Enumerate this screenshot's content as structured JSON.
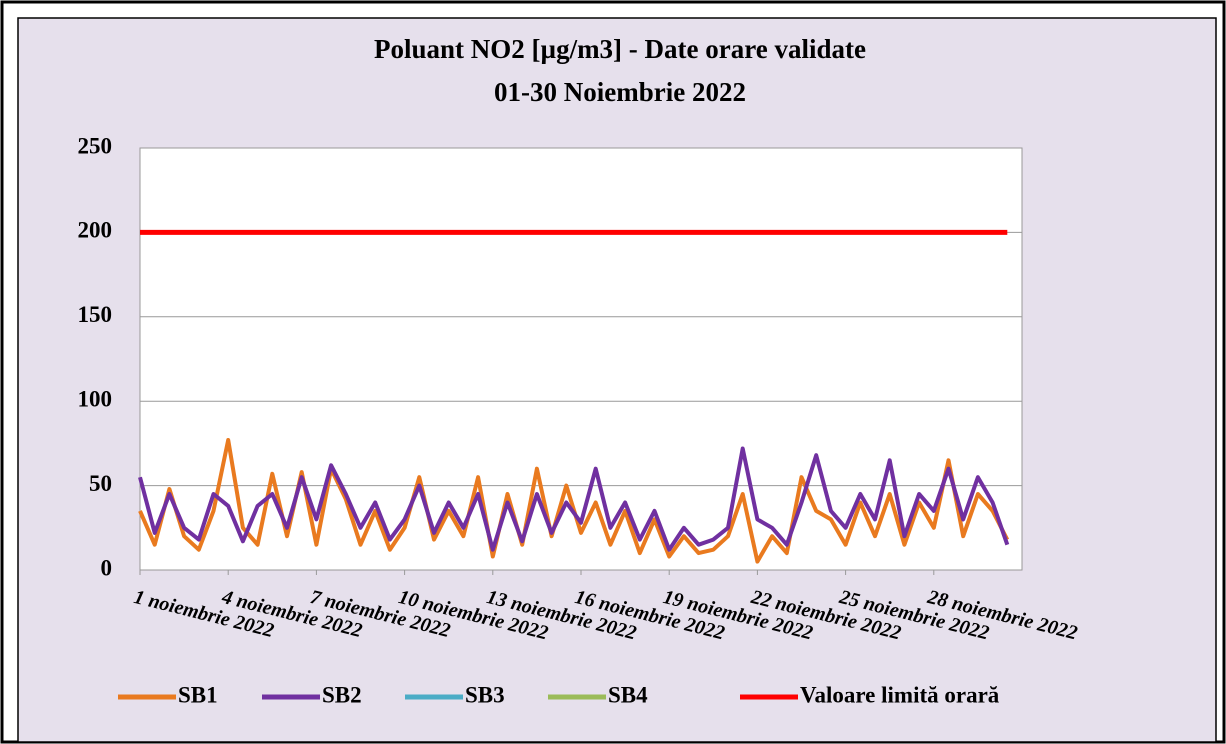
{
  "chart_data": {
    "type": "line",
    "title": "Poluant NO2 [µg/m3] - Date orare validate",
    "subtitle": "01-30 Noiembrie 2022",
    "x": [
      1,
      1.5,
      2,
      2.5,
      3,
      3.5,
      4,
      4.5,
      5,
      5.5,
      6,
      6.5,
      7,
      7.5,
      8,
      8.5,
      9,
      9.5,
      10,
      10.5,
      11,
      11.5,
      12,
      12.5,
      13,
      13.5,
      14,
      14.5,
      15,
      15.5,
      16,
      16.5,
      17,
      17.5,
      18,
      18.5,
      19,
      19.5,
      20,
      20.5,
      21,
      21.5,
      22,
      22.5,
      23,
      23.5,
      24,
      24.5,
      25,
      25.5,
      26,
      26.5,
      27,
      27.5,
      28,
      28.5,
      29,
      29.5,
      30,
      30.5
    ],
    "xlim": [
      1,
      31
    ],
    "xticks": [
      {
        "value": 1,
        "label": "1 noiembrie 2022"
      },
      {
        "value": 4,
        "label": "4 noiembrie 2022"
      },
      {
        "value": 7,
        "label": "7 noiembrie 2022"
      },
      {
        "value": 10,
        "label": "10 noiembrie 2022"
      },
      {
        "value": 13,
        "label": "13 noiembrie 2022"
      },
      {
        "value": 16,
        "label": "16 noiembrie 2022"
      },
      {
        "value": 19,
        "label": "19 noiembrie 2022"
      },
      {
        "value": 22,
        "label": "22 noiembrie 2022"
      },
      {
        "value": 25,
        "label": "25 noiembrie 2022"
      },
      {
        "value": 28,
        "label": "28 noiembrie 2022"
      }
    ],
    "ylim": [
      0,
      250
    ],
    "yticks": [
      0,
      50,
      100,
      150,
      200,
      250
    ],
    "grid": true,
    "legend": "bottom",
    "series": [
      {
        "name": "SB1",
        "color": "#e97a1f",
        "values": [
          35,
          15,
          48,
          20,
          12,
          35,
          77,
          25,
          15,
          57,
          20,
          58,
          15,
          60,
          42,
          15,
          35,
          12,
          25,
          55,
          18,
          35,
          20,
          55,
          8,
          45,
          15,
          60,
          20,
          50,
          22,
          40,
          15,
          35,
          10,
          30,
          8,
          20,
          10,
          12,
          20,
          45,
          5,
          20,
          10,
          55,
          35,
          30,
          15,
          40,
          20,
          45,
          15,
          40,
          25,
          65,
          20,
          45,
          35,
          18
        ]
      },
      {
        "name": "SB2",
        "color": "#7030a0",
        "values": [
          55,
          22,
          45,
          25,
          18,
          45,
          38,
          17,
          38,
          45,
          25,
          55,
          30,
          62,
          45,
          25,
          40,
          18,
          30,
          50,
          22,
          40,
          25,
          45,
          12,
          40,
          17,
          45,
          22,
          40,
          28,
          60,
          25,
          40,
          18,
          35,
          12,
          25,
          15,
          18,
          25,
          72,
          30,
          25,
          15,
          40,
          68,
          35,
          25,
          45,
          30,
          65,
          20,
          45,
          35,
          60,
          30,
          55,
          40,
          15
        ]
      },
      {
        "name": "SB3",
        "color": "#4bacc6",
        "values": [
          null,
          null,
          null,
          null,
          null,
          null,
          null,
          null,
          null,
          null,
          null,
          null,
          null,
          null,
          null,
          null,
          null,
          null,
          null,
          null,
          null,
          null,
          null,
          null,
          null,
          null,
          null,
          null,
          null,
          null,
          null,
          null,
          null,
          null,
          null,
          null,
          null,
          null,
          null,
          null,
          null,
          null,
          null,
          null,
          null,
          null,
          null,
          null,
          null,
          null,
          null,
          null,
          null,
          null,
          null,
          null,
          null,
          null,
          null,
          null
        ]
      },
      {
        "name": "SB4",
        "color": "#9bbb59",
        "values": [
          null,
          null,
          null,
          null,
          null,
          null,
          null,
          null,
          null,
          null,
          null,
          null,
          null,
          null,
          null,
          null,
          null,
          null,
          null,
          null,
          null,
          null,
          null,
          null,
          null,
          null,
          null,
          null,
          null,
          null,
          null,
          null,
          null,
          null,
          null,
          null,
          null,
          null,
          null,
          null,
          null,
          null,
          null,
          null,
          null,
          null,
          null,
          null,
          null,
          null,
          null,
          null,
          null,
          null,
          null,
          null,
          null,
          null,
          null,
          null
        ]
      },
      {
        "name": "Valoare limită orară",
        "color": "#ff0000",
        "values": [
          200,
          200,
          200,
          200,
          200,
          200,
          200,
          200,
          200,
          200,
          200,
          200,
          200,
          200,
          200,
          200,
          200,
          200,
          200,
          200,
          200,
          200,
          200,
          200,
          200,
          200,
          200,
          200,
          200,
          200,
          200,
          200,
          200,
          200,
          200,
          200,
          200,
          200,
          200,
          200,
          200,
          200,
          200,
          200,
          200,
          200,
          200,
          200,
          200,
          200,
          200,
          200,
          200,
          200,
          200,
          200,
          200,
          200,
          200,
          200
        ]
      }
    ]
  }
}
